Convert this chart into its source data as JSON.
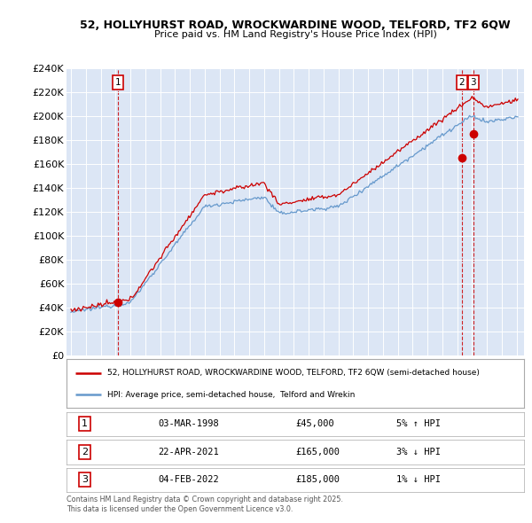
{
  "title_line1": "52, HOLLYHURST ROAD, WROCKWARDINE WOOD, TELFORD, TF2 6QW",
  "title_line2": "Price paid vs. HM Land Registry's House Price Index (HPI)",
  "ylim": [
    0,
    240000
  ],
  "ytick_labels": [
    "£0",
    "£20K",
    "£40K",
    "£60K",
    "£80K",
    "£100K",
    "£120K",
    "£140K",
    "£160K",
    "£180K",
    "£200K",
    "£220K",
    "£240K"
  ],
  "ytick_values": [
    0,
    20000,
    40000,
    60000,
    80000,
    100000,
    120000,
    140000,
    160000,
    180000,
    200000,
    220000,
    240000
  ],
  "xlim_start": 1994.7,
  "xlim_end": 2025.5,
  "background_color": "#ffffff",
  "plot_bg_color": "#dce6f5",
  "grid_color": "#ffffff",
  "red_line_color": "#cc0000",
  "blue_line_color": "#6699cc",
  "sale1_x": 1998.17,
  "sale1_y": 45000,
  "sale2_x": 2021.31,
  "sale2_y": 165000,
  "sale3_x": 2022.09,
  "sale3_y": 185000,
  "legend_line1": "52, HOLLYHURST ROAD, WROCKWARDINE WOOD, TELFORD, TF2 6QW (semi-detached house)",
  "legend_line2": "HPI: Average price, semi-detached house,  Telford and Wrekin",
  "table_data": [
    {
      "num": "1",
      "date": "03-MAR-1998",
      "price": "£45,000",
      "hpi": "5% ↑ HPI"
    },
    {
      "num": "2",
      "date": "22-APR-2021",
      "price": "£165,000",
      "hpi": "3% ↓ HPI"
    },
    {
      "num": "3",
      "date": "04-FEB-2022",
      "price": "£185,000",
      "hpi": "1% ↓ HPI"
    }
  ],
  "footnote": "Contains HM Land Registry data © Crown copyright and database right 2025.\nThis data is licensed under the Open Government Licence v3.0."
}
